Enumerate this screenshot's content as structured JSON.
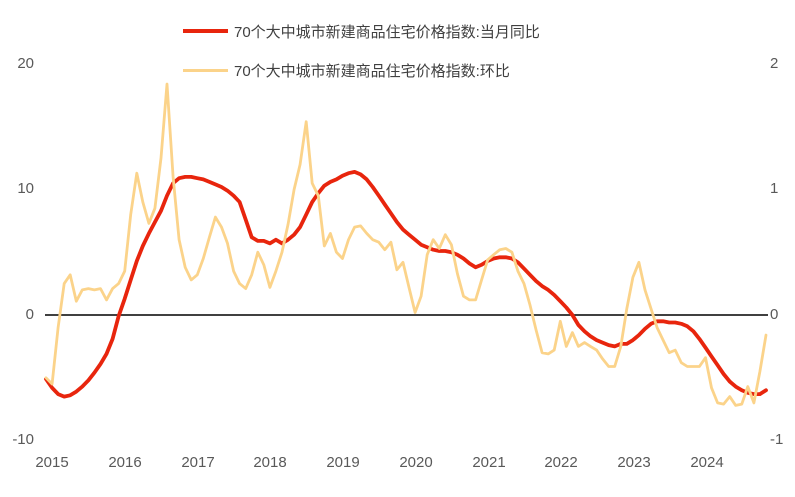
{
  "legend": {
    "items": [
      {
        "label": "70个大中城市新建商品住宅价格指数:当月同比",
        "color": "#e8250d"
      },
      {
        "label": "70个大中城市新建商品住宅价格指数:环比",
        "color": "#fbd38a"
      }
    ]
  },
  "axes": {
    "left_ticks": [
      "20",
      "10",
      "0",
      "-10"
    ],
    "right_ticks": [
      "2",
      "1",
      "0",
      "-1"
    ],
    "x_ticks": [
      "2015",
      "2016",
      "2017",
      "2018",
      "2019",
      "2020",
      "2021",
      "2022",
      "2023",
      "2024"
    ]
  },
  "chart_data": {
    "type": "line",
    "title": "",
    "x_unit": "month",
    "x_range": [
      "2015-01",
      "2024-12"
    ],
    "x_tick_labels": [
      "2015",
      "2016",
      "2017",
      "2018",
      "2019",
      "2020",
      "2021",
      "2022",
      "2023",
      "2024"
    ],
    "left_axis": {
      "min": -10,
      "max": 20,
      "ticks": [
        20,
        10,
        0,
        -10
      ]
    },
    "right_axis": {
      "min": -1,
      "max": 2,
      "ticks": [
        2,
        1,
        0,
        -1
      ]
    },
    "grid": false,
    "zero_line": true,
    "legend_position": "top",
    "series": [
      {
        "name": "70个大中城市新建商品住宅价格指数:当月同比",
        "axis": "left",
        "color": "#e8250d",
        "values": [
          -5.1,
          -5.8,
          -6.3,
          -6.5,
          -6.4,
          -6.1,
          -5.7,
          -5.2,
          -4.6,
          -3.9,
          -3.1,
          -1.9,
          -0.1,
          1.3,
          2.8,
          4.3,
          5.5,
          6.5,
          7.4,
          8.3,
          9.5,
          10.5,
          10.9,
          11.0,
          11.0,
          10.9,
          10.8,
          10.6,
          10.4,
          10.2,
          9.9,
          9.5,
          9.0,
          7.6,
          6.2,
          5.9,
          5.9,
          5.7,
          6.0,
          5.7,
          6.0,
          6.4,
          7.0,
          8.0,
          9.0,
          9.7,
          10.3,
          10.6,
          10.8,
          11.1,
          11.3,
          11.4,
          11.2,
          10.8,
          10.2,
          9.5,
          8.8,
          8.1,
          7.4,
          6.8,
          6.4,
          6.0,
          5.6,
          5.4,
          5.2,
          5.1,
          5.1,
          5.0,
          4.8,
          4.5,
          4.1,
          3.8,
          4.0,
          4.3,
          4.5,
          4.6,
          4.6,
          4.5,
          4.2,
          3.7,
          3.2,
          2.7,
          2.3,
          2.0,
          1.6,
          1.1,
          0.6,
          0.0,
          -0.8,
          -1.3,
          -1.7,
          -2.0,
          -2.2,
          -2.4,
          -2.5,
          -2.3,
          -2.3,
          -2.0,
          -1.6,
          -1.1,
          -0.7,
          -0.5,
          -0.5,
          -0.6,
          -0.6,
          -0.7,
          -0.9,
          -1.3,
          -1.9,
          -2.6,
          -3.3,
          -4.0,
          -4.7,
          -5.3,
          -5.7,
          -6.0,
          -6.2,
          -6.3,
          -6.3,
          -6.0
        ]
      },
      {
        "name": "70个大中城市新建商品住宅价格指数:环比",
        "axis": "right",
        "color": "#fbd38a",
        "values": [
          -0.5,
          -0.55,
          -0.1,
          0.25,
          0.32,
          0.11,
          0.2,
          0.21,
          0.2,
          0.21,
          0.12,
          0.21,
          0.25,
          0.35,
          0.8,
          1.13,
          0.9,
          0.73,
          0.85,
          1.25,
          1.84,
          1.1,
          0.6,
          0.38,
          0.28,
          0.32,
          0.45,
          0.62,
          0.78,
          0.7,
          0.57,
          0.35,
          0.25,
          0.21,
          0.32,
          0.5,
          0.4,
          0.22,
          0.35,
          0.5,
          0.72,
          1.0,
          1.2,
          1.54,
          1.05,
          0.95,
          0.55,
          0.65,
          0.5,
          0.45,
          0.6,
          0.7,
          0.71,
          0.65,
          0.6,
          0.58,
          0.52,
          0.58,
          0.36,
          0.42,
          0.22,
          0.02,
          0.15,
          0.48,
          0.6,
          0.53,
          0.64,
          0.56,
          0.33,
          0.15,
          0.12,
          0.12,
          0.28,
          0.44,
          0.48,
          0.52,
          0.53,
          0.5,
          0.35,
          0.25,
          0.08,
          -0.12,
          -0.3,
          -0.31,
          -0.28,
          -0.05,
          -0.25,
          -0.14,
          -0.25,
          -0.22,
          -0.25,
          -0.28,
          -0.35,
          -0.41,
          -0.41,
          -0.25,
          0.05,
          0.3,
          0.42,
          0.2,
          0.05,
          -0.1,
          -0.2,
          -0.3,
          -0.28,
          -0.38,
          -0.41,
          -0.41,
          -0.41,
          -0.34,
          -0.58,
          -0.7,
          -0.71,
          -0.65,
          -0.72,
          -0.71,
          -0.57,
          -0.7,
          -0.45,
          -0.16
        ]
      }
    ]
  }
}
